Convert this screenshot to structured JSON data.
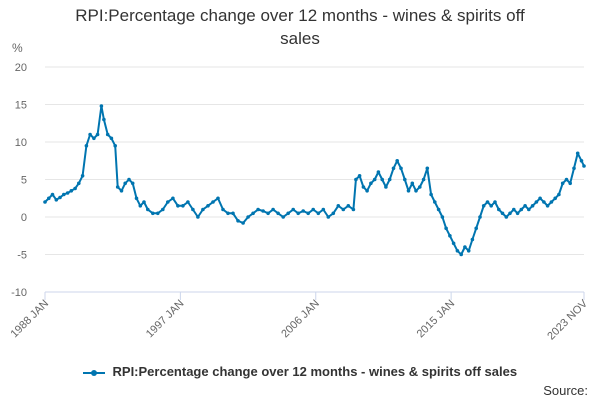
{
  "title_lines": [
    "RPI:Percentage change over 12 months - wines & spirits off",
    "sales"
  ],
  "source_label": "Source:",
  "colors": {
    "series": "#0075b0",
    "grid": "#e6e6e6",
    "axis": "#ccd6eb"
  },
  "chart_data": {
    "type": "line",
    "title": "RPI:Percentage change over 12 months - wines & spirits off sales",
    "ylabel": "%",
    "ylim": [
      -10,
      20
    ],
    "y_ticks": [
      20,
      15,
      10,
      5,
      0,
      -5,
      -10
    ],
    "x_ticks": [
      "1988 JAN",
      "1997 JAN",
      "2006 JAN",
      "2015 JAN",
      "2023 NOV"
    ],
    "x_range": [
      "1988-01",
      "2023-11"
    ],
    "grid": true,
    "legend_position": "bottom",
    "series": [
      {
        "name": "RPI:Percentage change over 12 months - wines & spirits off sales",
        "points": [
          [
            "1988-01",
            2.0
          ],
          [
            "1988-04",
            2.5
          ],
          [
            "1988-07",
            3.0
          ],
          [
            "1988-10",
            2.3
          ],
          [
            "1989-01",
            2.6
          ],
          [
            "1989-04",
            3.0
          ],
          [
            "1989-07",
            3.2
          ],
          [
            "1989-10",
            3.5
          ],
          [
            "1990-01",
            3.8
          ],
          [
            "1990-04",
            4.5
          ],
          [
            "1990-07",
            5.5
          ],
          [
            "1990-10",
            9.5
          ],
          [
            "1991-01",
            11.0
          ],
          [
            "1991-04",
            10.5
          ],
          [
            "1991-07",
            11.0
          ],
          [
            "1991-10",
            14.8
          ],
          [
            "1991-12",
            13.0
          ],
          [
            "1992-03",
            11.0
          ],
          [
            "1992-06",
            10.5
          ],
          [
            "1992-09",
            9.5
          ],
          [
            "1992-11",
            4.0
          ],
          [
            "1993-02",
            3.5
          ],
          [
            "1993-05",
            4.5
          ],
          [
            "1993-08",
            5.0
          ],
          [
            "1993-11",
            4.5
          ],
          [
            "1994-02",
            2.5
          ],
          [
            "1994-05",
            1.5
          ],
          [
            "1994-08",
            2.0
          ],
          [
            "1994-11",
            1.0
          ],
          [
            "1995-03",
            0.5
          ],
          [
            "1995-07",
            0.5
          ],
          [
            "1995-11",
            1.0
          ],
          [
            "1996-03",
            2.0
          ],
          [
            "1996-07",
            2.5
          ],
          [
            "1996-11",
            1.5
          ],
          [
            "1997-03",
            1.5
          ],
          [
            "1997-07",
            2.0
          ],
          [
            "1997-11",
            1.0
          ],
          [
            "1998-03",
            0.0
          ],
          [
            "1998-07",
            1.0
          ],
          [
            "1998-11",
            1.5
          ],
          [
            "1999-03",
            2.0
          ],
          [
            "1999-07",
            2.5
          ],
          [
            "1999-11",
            1.0
          ],
          [
            "2000-03",
            0.5
          ],
          [
            "2000-07",
            0.5
          ],
          [
            "2000-11",
            -0.5
          ],
          [
            "2001-03",
            -0.8
          ],
          [
            "2001-07",
            0.0
          ],
          [
            "2001-11",
            0.5
          ],
          [
            "2002-03",
            1.0
          ],
          [
            "2002-07",
            0.8
          ],
          [
            "2002-11",
            0.5
          ],
          [
            "2003-03",
            1.0
          ],
          [
            "2003-07",
            0.5
          ],
          [
            "2003-11",
            0.0
          ],
          [
            "2004-03",
            0.5
          ],
          [
            "2004-07",
            1.0
          ],
          [
            "2004-11",
            0.5
          ],
          [
            "2005-03",
            0.8
          ],
          [
            "2005-07",
            0.5
          ],
          [
            "2005-11",
            1.0
          ],
          [
            "2006-03",
            0.5
          ],
          [
            "2006-07",
            1.0
          ],
          [
            "2006-11",
            0.0
          ],
          [
            "2007-03",
            0.5
          ],
          [
            "2007-07",
            1.5
          ],
          [
            "2007-11",
            1.0
          ],
          [
            "2008-03",
            1.5
          ],
          [
            "2008-07",
            1.0
          ],
          [
            "2008-09",
            5.0
          ],
          [
            "2008-12",
            5.5
          ],
          [
            "2009-03",
            4.0
          ],
          [
            "2009-06",
            3.5
          ],
          [
            "2009-09",
            4.5
          ],
          [
            "2009-12",
            5.0
          ],
          [
            "2010-03",
            6.0
          ],
          [
            "2010-06",
            5.0
          ],
          [
            "2010-09",
            4.0
          ],
          [
            "2010-12",
            5.0
          ],
          [
            "2011-03",
            6.5
          ],
          [
            "2011-06",
            7.5
          ],
          [
            "2011-09",
            6.5
          ],
          [
            "2011-12",
            5.0
          ],
          [
            "2012-03",
            3.5
          ],
          [
            "2012-06",
            4.5
          ],
          [
            "2012-09",
            3.5
          ],
          [
            "2012-12",
            4.0
          ],
          [
            "2013-03",
            5.0
          ],
          [
            "2013-06",
            6.5
          ],
          [
            "2013-09",
            3.0
          ],
          [
            "2013-12",
            2.0
          ],
          [
            "2014-03",
            1.0
          ],
          [
            "2014-06",
            0.0
          ],
          [
            "2014-09",
            -1.5
          ],
          [
            "2014-12",
            -2.5
          ],
          [
            "2015-03",
            -3.5
          ],
          [
            "2015-06",
            -4.5
          ],
          [
            "2015-09",
            -5.0
          ],
          [
            "2015-12",
            -4.0
          ],
          [
            "2016-03",
            -4.5
          ],
          [
            "2016-06",
            -3.0
          ],
          [
            "2016-09",
            -1.5
          ],
          [
            "2016-12",
            0.0
          ],
          [
            "2017-03",
            1.5
          ],
          [
            "2017-06",
            2.0
          ],
          [
            "2017-09",
            1.5
          ],
          [
            "2017-12",
            2.0
          ],
          [
            "2018-03",
            1.0
          ],
          [
            "2018-06",
            0.5
          ],
          [
            "2018-09",
            0.0
          ],
          [
            "2018-12",
            0.5
          ],
          [
            "2019-03",
            1.0
          ],
          [
            "2019-06",
            0.5
          ],
          [
            "2019-09",
            1.0
          ],
          [
            "2019-12",
            1.5
          ],
          [
            "2020-03",
            1.0
          ],
          [
            "2020-06",
            1.5
          ],
          [
            "2020-09",
            2.0
          ],
          [
            "2020-12",
            2.5
          ],
          [
            "2021-03",
            2.0
          ],
          [
            "2021-06",
            1.5
          ],
          [
            "2021-09",
            2.0
          ],
          [
            "2021-12",
            2.5
          ],
          [
            "2022-03",
            3.0
          ],
          [
            "2022-06",
            4.5
          ],
          [
            "2022-09",
            5.0
          ],
          [
            "2022-12",
            4.5
          ],
          [
            "2023-03",
            6.5
          ],
          [
            "2023-06",
            8.5
          ],
          [
            "2023-09",
            7.5
          ],
          [
            "2023-11",
            6.8
          ]
        ]
      }
    ]
  }
}
